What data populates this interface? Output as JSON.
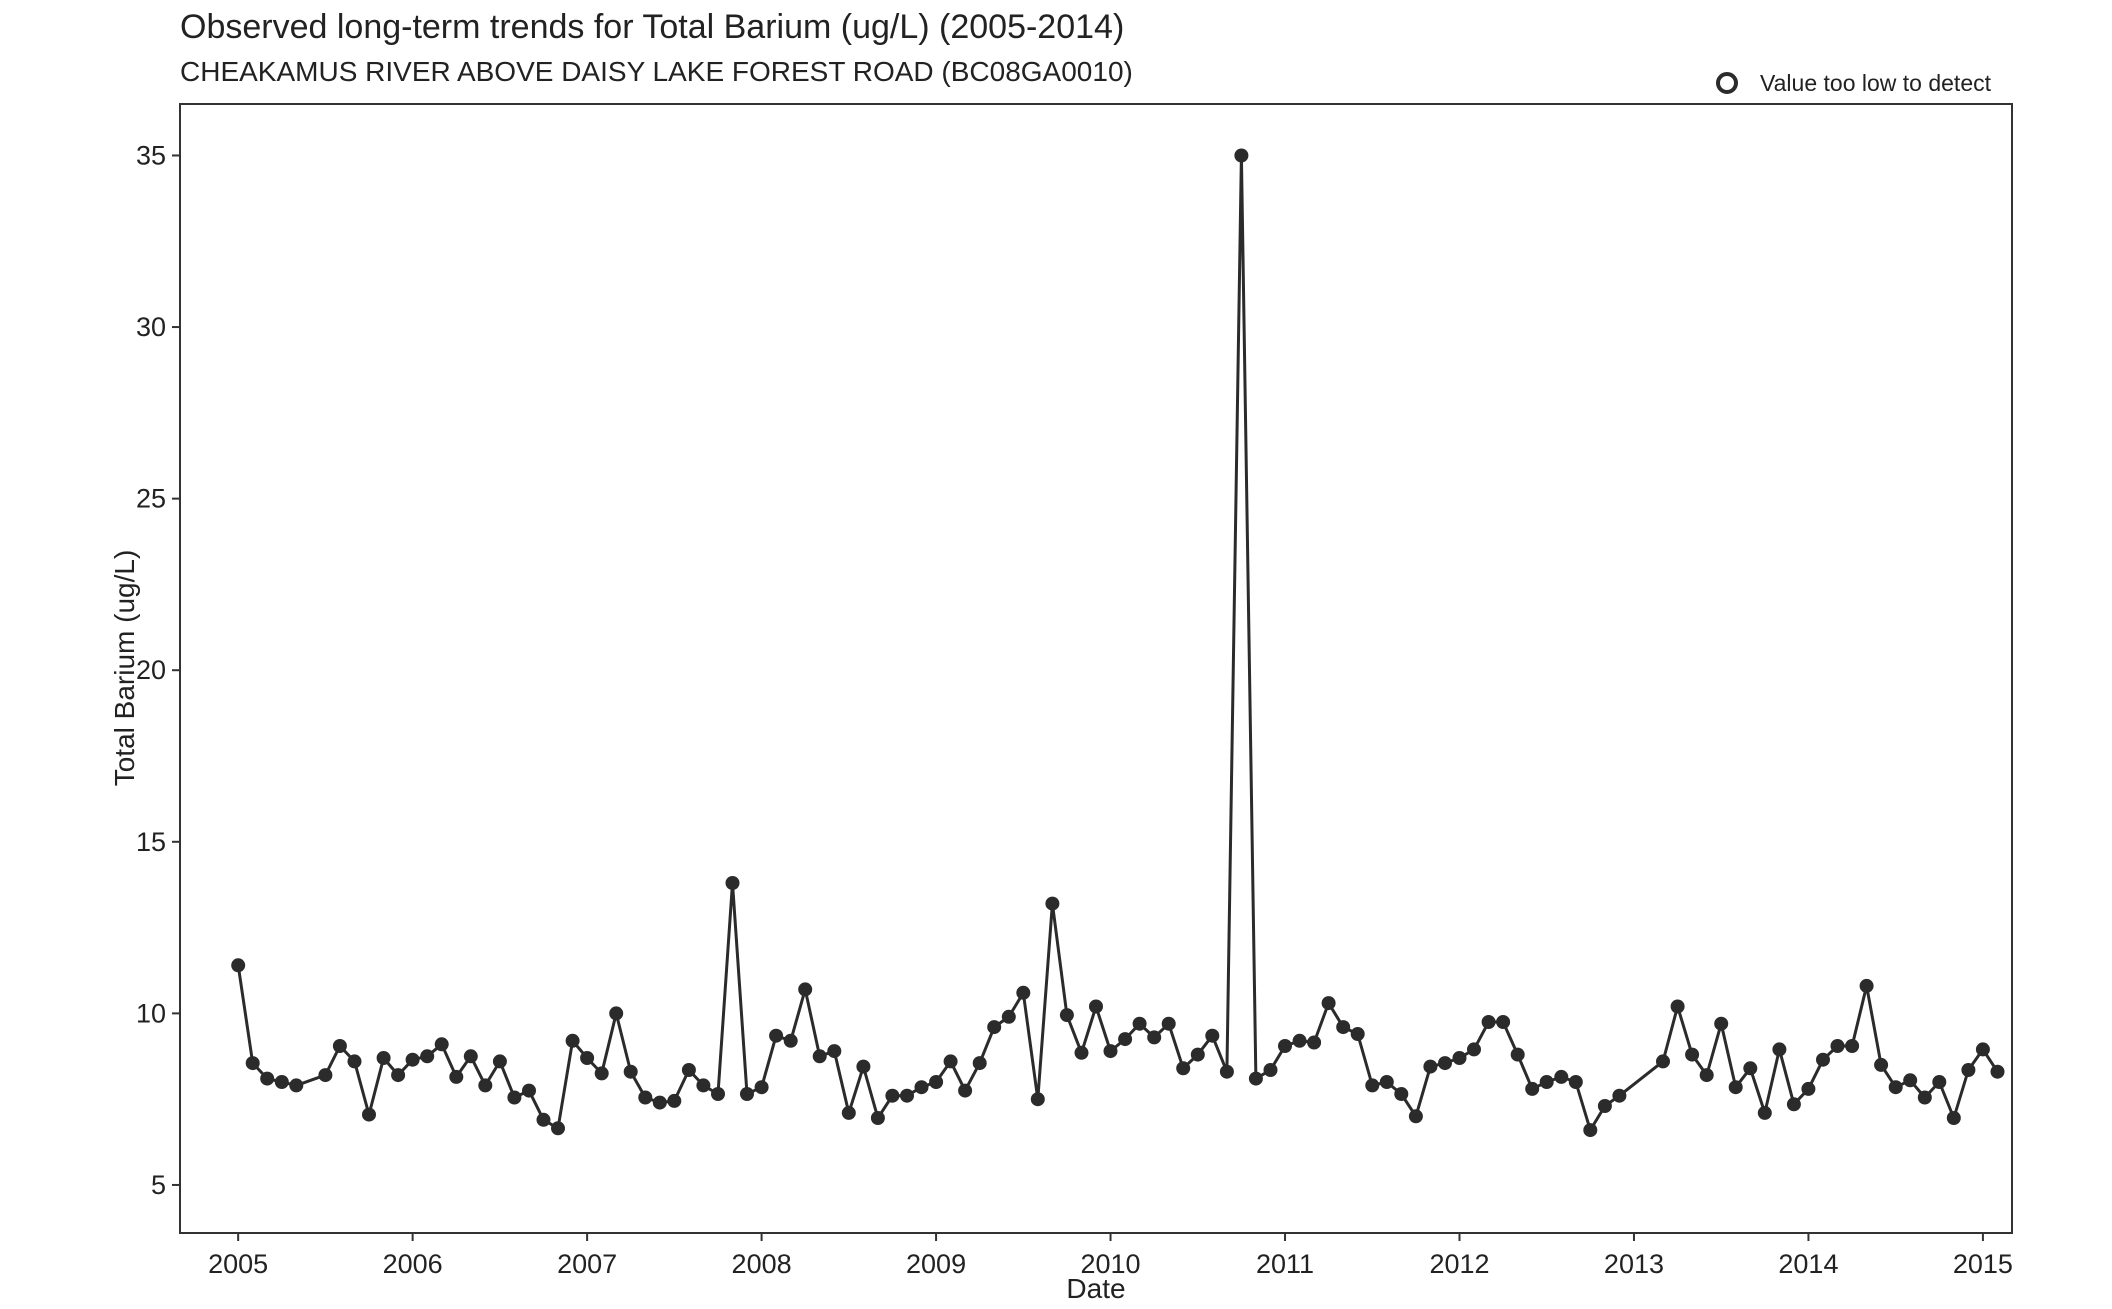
{
  "chart_data": {
    "type": "line",
    "title": "Observed long-term trends for Total Barium (ug/L) (2005-2014)",
    "subtitle": "CHEAKAMUS RIVER ABOVE DAISY LAKE FOREST ROAD (BC08GA0010)",
    "xlabel": "Date",
    "ylabel": "Total Barium (ug/L)",
    "x_ticks": [
      "2005",
      "2006",
      "2007",
      "2008",
      "2009",
      "2010",
      "2011",
      "2012",
      "2013",
      "2014",
      "2015"
    ],
    "y_ticks": [
      5,
      10,
      15,
      20,
      25,
      30,
      35
    ],
    "xlim": [
      "2004-09",
      "2015-03"
    ],
    "ylim": [
      3.6,
      36.5
    ],
    "grid": false,
    "legend": {
      "position": "top-right",
      "entries": [
        "Value too low to detect"
      ]
    },
    "series": [
      {
        "marker": "filled-circle",
        "color": "#2b2b2b",
        "points": [
          [
            "2005-01",
            11.4
          ],
          [
            "2005-02",
            8.55
          ],
          [
            "2005-03",
            8.1
          ],
          [
            "2005-04",
            8.0
          ],
          [
            "2005-05",
            7.9
          ],
          [
            "2005-07",
            8.2
          ],
          [
            "2005-08",
            9.05
          ],
          [
            "2005-09",
            8.6
          ],
          [
            "2005-10",
            7.05
          ],
          [
            "2005-11",
            8.7
          ],
          [
            "2005-12",
            8.2
          ],
          [
            "2006-01",
            8.65
          ],
          [
            "2006-02",
            8.75
          ],
          [
            "2006-03",
            9.1
          ],
          [
            "2006-04",
            8.15
          ],
          [
            "2006-05",
            8.75
          ],
          [
            "2006-06",
            7.9
          ],
          [
            "2006-07",
            8.6
          ],
          [
            "2006-08",
            7.55
          ],
          [
            "2006-09",
            7.75
          ],
          [
            "2006-10",
            6.9
          ],
          [
            "2006-11",
            6.65
          ],
          [
            "2006-12",
            9.2
          ],
          [
            "2007-01",
            8.7
          ],
          [
            "2007-02",
            8.25
          ],
          [
            "2007-03",
            10.0
          ],
          [
            "2007-04",
            8.3
          ],
          [
            "2007-05",
            7.55
          ],
          [
            "2007-06",
            7.4
          ],
          [
            "2007-07",
            7.45
          ],
          [
            "2007-08",
            8.35
          ],
          [
            "2007-09",
            7.9
          ],
          [
            "2007-10",
            7.65
          ],
          [
            "2007-11",
            13.8
          ],
          [
            "2007-12",
            7.65
          ],
          [
            "2008-01",
            7.85
          ],
          [
            "2008-02",
            9.35
          ],
          [
            "2008-03",
            9.2
          ],
          [
            "2008-04",
            10.7
          ],
          [
            "2008-05",
            8.75
          ],
          [
            "2008-06",
            8.9
          ],
          [
            "2008-07",
            7.1
          ],
          [
            "2008-08",
            8.45
          ],
          [
            "2008-09",
            6.95
          ],
          [
            "2008-10",
            7.6
          ],
          [
            "2008-11",
            7.6
          ],
          [
            "2008-12",
            7.85
          ],
          [
            "2009-01",
            8.0
          ],
          [
            "2009-02",
            8.6
          ],
          [
            "2009-03",
            7.75
          ],
          [
            "2009-04",
            8.55
          ],
          [
            "2009-05",
            9.6
          ],
          [
            "2009-06",
            9.9
          ],
          [
            "2009-07",
            10.6
          ],
          [
            "2009-08",
            7.5
          ],
          [
            "2009-09",
            13.2
          ],
          [
            "2009-10",
            9.95
          ],
          [
            "2009-11",
            8.85
          ],
          [
            "2009-12",
            10.2
          ],
          [
            "2010-01",
            8.9
          ],
          [
            "2010-02",
            9.25
          ],
          [
            "2010-03",
            9.7
          ],
          [
            "2010-04",
            9.3
          ],
          [
            "2010-05",
            9.7
          ],
          [
            "2010-06",
            8.4
          ],
          [
            "2010-07",
            8.8
          ],
          [
            "2010-08",
            9.35
          ],
          [
            "2010-09",
            8.3
          ],
          [
            "2010-10",
            35.0
          ],
          [
            "2010-11",
            8.1
          ],
          [
            "2010-12",
            8.35
          ],
          [
            "2011-01",
            9.05
          ],
          [
            "2011-02",
            9.2
          ],
          [
            "2011-03",
            9.15
          ],
          [
            "2011-04",
            10.3
          ],
          [
            "2011-05",
            9.6
          ],
          [
            "2011-06",
            9.4
          ],
          [
            "2011-07",
            7.9
          ],
          [
            "2011-08",
            8.0
          ],
          [
            "2011-09",
            7.65
          ],
          [
            "2011-10",
            7.0
          ],
          [
            "2011-11",
            8.45
          ],
          [
            "2011-12",
            8.55
          ],
          [
            "2012-01",
            8.7
          ],
          [
            "2012-02",
            8.95
          ],
          [
            "2012-03",
            9.75
          ],
          [
            "2012-04",
            9.75
          ],
          [
            "2012-05",
            8.8
          ],
          [
            "2012-06",
            7.8
          ],
          [
            "2012-07",
            8.0
          ],
          [
            "2012-08",
            8.15
          ],
          [
            "2012-09",
            8.0
          ],
          [
            "2012-10",
            6.6
          ],
          [
            "2012-11",
            7.3
          ],
          [
            "2012-12",
            7.6
          ],
          [
            "2013-03",
            8.6
          ],
          [
            "2013-04",
            10.2
          ],
          [
            "2013-05",
            8.8
          ],
          [
            "2013-06",
            8.2
          ],
          [
            "2013-07",
            9.7
          ],
          [
            "2013-08",
            7.85
          ],
          [
            "2013-09",
            8.4
          ],
          [
            "2013-10",
            7.1
          ],
          [
            "2013-11",
            8.95
          ],
          [
            "2013-12",
            7.35
          ],
          [
            "2014-01",
            7.8
          ],
          [
            "2014-02",
            8.65
          ],
          [
            "2014-03",
            9.05
          ],
          [
            "2014-04",
            9.05
          ],
          [
            "2014-05",
            10.8
          ],
          [
            "2014-06",
            8.5
          ],
          [
            "2014-07",
            7.85
          ],
          [
            "2014-08",
            8.05
          ],
          [
            "2014-09",
            7.55
          ],
          [
            "2014-10",
            8.0
          ],
          [
            "2014-11",
            6.95
          ],
          [
            "2014-12",
            8.35
          ],
          [
            "2015-01",
            8.95
          ],
          [
            "2015-02",
            8.3
          ]
        ]
      }
    ]
  }
}
